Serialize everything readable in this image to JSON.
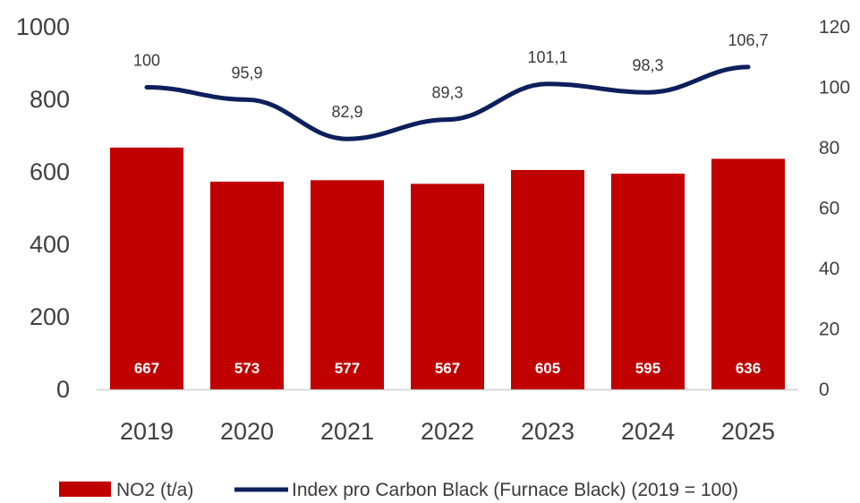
{
  "colors": {
    "bar": "#c00000",
    "line": "#0d1f5c",
    "axis": "#d0d0d0",
    "text": "#3f3f3f"
  },
  "chart_data": {
    "type": "bar",
    "categories": [
      "2019",
      "2020",
      "2021",
      "2022",
      "2023",
      "2024",
      "2025"
    ],
    "series": [
      {
        "name": "NO2 (t/a)",
        "type": "bar",
        "axis": "left",
        "values": [
          667,
          573,
          577,
          567,
          605,
          595,
          636
        ],
        "labels": [
          "667",
          "573",
          "577",
          "567",
          "605",
          "595",
          "636"
        ]
      },
      {
        "name": "Index pro Carbon Black (Furnace Black) (2019 = 100)",
        "type": "line",
        "axis": "right",
        "values": [
          100,
          95.9,
          82.9,
          89.3,
          101.1,
          98.3,
          106.7
        ],
        "labels": [
          "100",
          "95,9",
          "82,9",
          "89,3",
          "101,1",
          "98,3",
          "106,7"
        ]
      }
    ],
    "y_left": {
      "min": 0,
      "max": 1000,
      "ticks": [
        "0",
        "200",
        "400",
        "600",
        "800",
        "1000"
      ]
    },
    "y_right": {
      "min": 0,
      "max": 120,
      "ticks": [
        "0",
        "20",
        "40",
        "60",
        "80",
        "100",
        "120"
      ]
    },
    "grid": false,
    "legend": "bottom"
  }
}
